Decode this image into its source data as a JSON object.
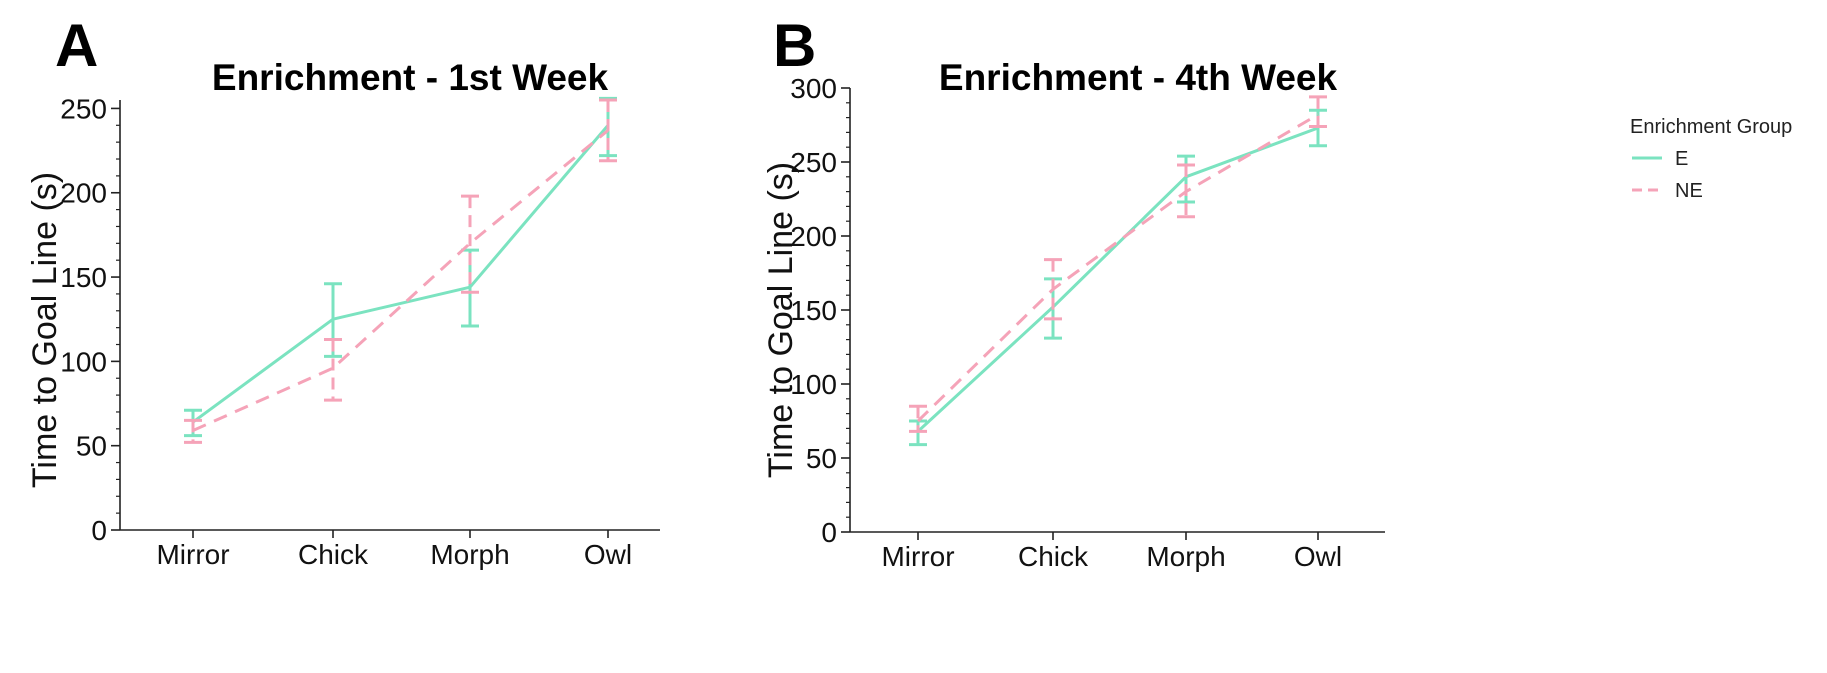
{
  "colors": {
    "E": "#7be3c0",
    "NE": "#f5a3b8",
    "axis": "#222222"
  },
  "legend": {
    "title": "Enrichment Group",
    "items": [
      {
        "label": "E",
        "color": "#7be3c0",
        "dashed": false
      },
      {
        "label": "NE",
        "color": "#f5a3b8",
        "dashed": true
      }
    ]
  },
  "chart_data": [
    {
      "panel": "A",
      "type": "line",
      "title": "Enrichment - 1st Week",
      "xlabel": "",
      "ylabel": "Time to Goal Line (s)",
      "categories": [
        "Mirror",
        "Chick",
        "Morph",
        "Owl"
      ],
      "ylim": [
        0,
        255
      ],
      "yticks": [
        0,
        50,
        100,
        150,
        200,
        250
      ],
      "series": [
        {
          "name": "E",
          "values": [
            64,
            125,
            144,
            240
          ],
          "err_low": [
            56,
            103,
            121,
            222
          ],
          "err_high": [
            71,
            146,
            166,
            256
          ]
        },
        {
          "name": "NE",
          "values": [
            59,
            96,
            170,
            237
          ],
          "err_low": [
            52,
            77,
            141,
            219
          ],
          "err_high": [
            65,
            113,
            198,
            255
          ]
        }
      ]
    },
    {
      "panel": "B",
      "type": "line",
      "title": "Enrichment - 4th Week",
      "xlabel": "",
      "ylabel": "Time to Goal Line (s)",
      "categories": [
        "Mirror",
        "Chick",
        "Morph",
        "Owl"
      ],
      "ylim": [
        0,
        300
      ],
      "yticks": [
        0,
        50,
        100,
        150,
        200,
        250,
        300
      ],
      "series": [
        {
          "name": "E",
          "values": [
            68,
            152,
            240,
            273
          ],
          "err_low": [
            59,
            131,
            223,
            261
          ],
          "err_high": [
            75,
            171,
            254,
            285
          ]
        },
        {
          "name": "NE",
          "values": [
            75,
            164,
            230,
            282
          ],
          "err_low": [
            68,
            144,
            213,
            274
          ],
          "err_high": [
            85,
            184,
            248,
            294
          ]
        }
      ]
    }
  ]
}
